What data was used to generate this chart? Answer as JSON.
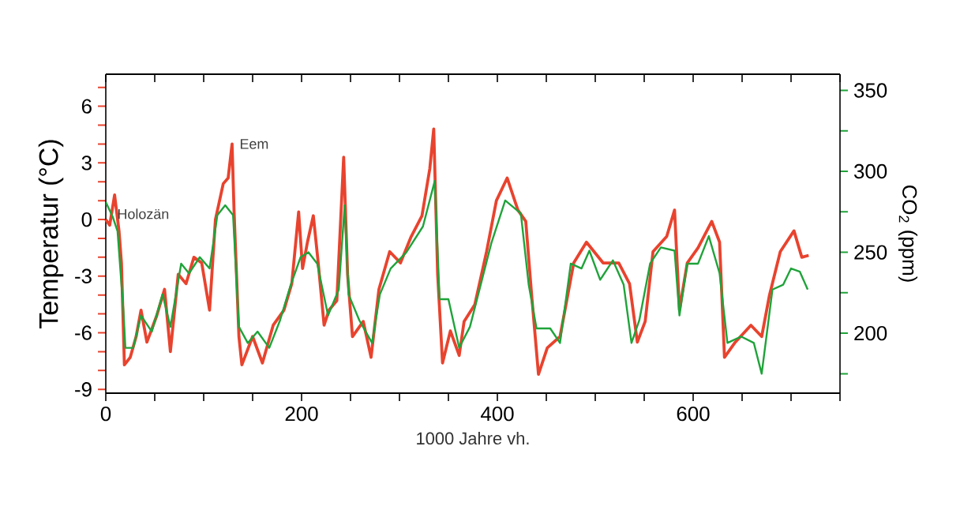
{
  "chart_data": {
    "type": "line",
    "xlabel": "1000 Jahre vh.",
    "ylabel": "Temperatur (°C)",
    "y2label": "CO$_{2}$ (ppm)",
    "xlim": [
      0,
      750
    ],
    "ylim": [
      -9.2,
      7.7
    ],
    "y2lim": [
      163,
      360
    ],
    "xticks": [
      0,
      {
        "value": 50,
        "label": null
      },
      {
        "value": 100,
        "label": null
      },
      {
        "value": 150,
        "label": null
      },
      200,
      {
        "value": 250,
        "label": null
      },
      {
        "value": 300,
        "label": null
      },
      {
        "value": 350,
        "label": null
      },
      400,
      {
        "value": 450,
        "label": null
      },
      {
        "value": 500,
        "label": null
      },
      {
        "value": 550,
        "label": null
      },
      600,
      {
        "value": 650,
        "label": null
      },
      {
        "value": 700,
        "label": null
      },
      {
        "value": 750,
        "label": null
      }
    ],
    "yticks": [
      -9,
      {
        "value": -8,
        "label": null
      },
      {
        "value": -7,
        "label": null
      },
      -6,
      {
        "value": -5,
        "label": null
      },
      {
        "value": -4,
        "label": null
      },
      -3,
      {
        "value": -2,
        "label": null
      },
      {
        "value": -1,
        "label": null
      },
      0,
      {
        "value": 1,
        "label": null
      },
      {
        "value": 2,
        "label": null
      },
      3,
      {
        "value": 4,
        "label": null
      },
      {
        "value": 5,
        "label": null
      },
      6,
      {
        "value": 7,
        "label": null
      }
    ],
    "y2ticks": [
      {
        "value": 175,
        "label": null
      },
      200,
      {
        "value": 225,
        "label": null
      },
      250,
      {
        "value": 275,
        "label": null
      },
      300,
      {
        "value": 325,
        "label": null
      },
      350
    ],
    "grid": false,
    "series": [
      {
        "color": "#e8432e",
        "axis": "y",
        "x": [
          0,
          4,
          9,
          13.5,
          16,
          19,
          25,
          31,
          36,
          42,
          52,
          60,
          66,
          74,
          82,
          90,
          98,
          106,
          112,
          120,
          125,
          129,
          131,
          136,
          139,
          150,
          160,
          171,
          182,
          190,
          197,
          201,
          206,
          212,
          217,
          223,
          228,
          236,
          243,
          247,
          252,
          263,
          271,
          279,
          290,
          301,
          312,
          323,
          331,
          335,
          339,
          344,
          352,
          361,
          366,
          377,
          389,
          399,
          410,
          421,
          429,
          435,
          442,
          451,
          464,
          478,
          491,
          508,
          524,
          535,
          543,
          551,
          559,
          573,
          581,
          586,
          594,
          605,
          619,
          627,
          632,
          643,
          659,
          670,
          678,
          689,
          703,
          711,
          718
        ],
        "values": [
          0,
          -0.3,
          1.3,
          -0.6,
          -2.3,
          -7.7,
          -7.3,
          -6.2,
          -4.8,
          -6.5,
          -5.1,
          -3.7,
          -7.0,
          -2.9,
          -3.4,
          -2.0,
          -2.3,
          -4.8,
          0,
          1.9,
          2.2,
          4.0,
          0.5,
          -6.2,
          -7.7,
          -6.2,
          -7.6,
          -5.6,
          -4.8,
          -3.4,
          0.4,
          -2.6,
          -1.2,
          0.2,
          -2.3,
          -5.6,
          -4.8,
          -4.3,
          3.3,
          -2.9,
          -6.2,
          -5.4,
          -7.3,
          -3.7,
          -1.7,
          -2.3,
          -0.9,
          0.2,
          2.7,
          4.8,
          -2.9,
          -7.6,
          -5.9,
          -7.2,
          -5.4,
          -4.5,
          -1.7,
          1.0,
          2.2,
          0.5,
          -0.1,
          -4.0,
          -8.2,
          -6.8,
          -6.2,
          -2.3,
          -1.2,
          -2.3,
          -2.3,
          -3.4,
          -6.5,
          -5.4,
          -1.7,
          -0.9,
          0.5,
          -4.8,
          -2.3,
          -1.5,
          -0.1,
          -1.2,
          -7.3,
          -6.5,
          -5.6,
          -6.2,
          -4.0,
          -1.7,
          -0.6,
          -2.0,
          -1.9
        ]
      },
      {
        "color": "#1fa33a",
        "axis": "y2",
        "x": [
          0,
          7,
          12,
          18,
          20,
          28,
          36,
          47,
          58,
          66,
          77,
          85,
          96,
          106,
          114,
          122,
          130,
          136,
          145,
          155,
          167,
          178,
          189,
          199,
          207,
          216,
          227,
          238,
          244,
          248,
          259,
          272,
          280,
          291,
          307,
          324,
          336,
          341,
          350,
          361,
          372,
          383,
          394,
          408,
          424,
          432,
          440,
          454,
          464,
          475,
          486,
          494,
          505,
          518,
          529,
          537,
          545,
          556,
          567,
          581,
          586,
          594,
          605,
          616,
          627,
          635,
          649,
          662,
          670,
          681,
          692,
          700,
          709,
          717
        ],
        "values": [
          281,
          272,
          263,
          214,
          191,
          191,
          211,
          201,
          224,
          204,
          243,
          237,
          247,
          240,
          273,
          279,
          273,
          204,
          194,
          201,
          191,
          208,
          230,
          247,
          250,
          243,
          211,
          227,
          279,
          224,
          208,
          194,
          224,
          240,
          250,
          266,
          294,
          221,
          221,
          191,
          204,
          230,
          256,
          282,
          274,
          230,
          203,
          203,
          194,
          243,
          240,
          251,
          233,
          245,
          230,
          194,
          208,
          243,
          253,
          251,
          211,
          243,
          243,
          260,
          237,
          194,
          198,
          194,
          175,
          227,
          230,
          240,
          238,
          227
        ]
      }
    ],
    "annotations": [
      {
        "text": "Holozän",
        "x": 6,
        "y": 0.3
      },
      {
        "text": "Eem",
        "x": 131,
        "y": 4.0
      }
    ]
  }
}
